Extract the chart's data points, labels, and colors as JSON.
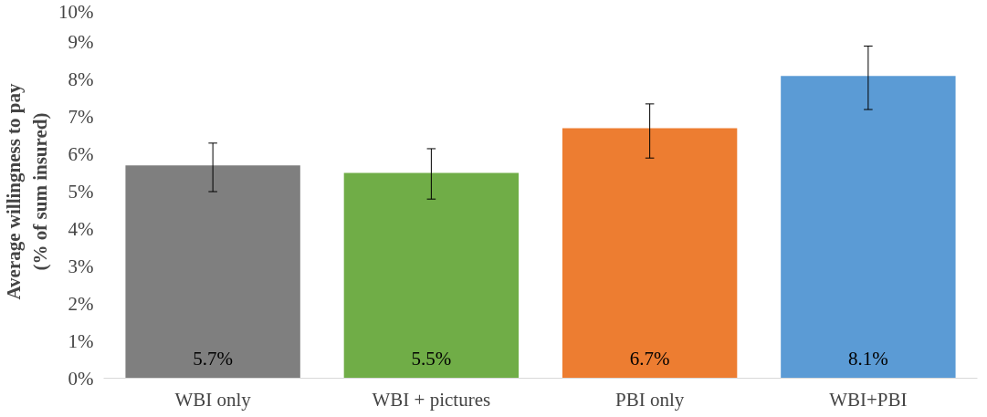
{
  "chart_data": {
    "type": "bar",
    "ylabel": "Average willingness to pay\n(% of sum insured)",
    "categories": [
      "WBI only",
      "WBI + pictures",
      "PBI only",
      "WBI+PBI"
    ],
    "values": [
      5.7,
      5.5,
      6.7,
      8.1
    ],
    "colors": [
      "#7f7f7f",
      "#70ad47",
      "#ed7d31",
      "#5b9bd5"
    ],
    "errors": [
      [
        5.0,
        6.3
      ],
      [
        4.8,
        6.15
      ],
      [
        5.9,
        7.35
      ],
      [
        7.2,
        8.9
      ]
    ],
    "value_labels": [
      "5.7%",
      "5.5%",
      "6.7%",
      "8.1%"
    ],
    "ylim": [
      0,
      10
    ],
    "yticks": [
      {
        "value": 0,
        "label": "0%"
      },
      {
        "value": 1,
        "label": "1%"
      },
      {
        "value": 2,
        "label": "2%"
      },
      {
        "value": 3,
        "label": "3%"
      },
      {
        "value": 4,
        "label": "4%"
      },
      {
        "value": 5,
        "label": "5%"
      },
      {
        "value": 6,
        "label": "6%"
      },
      {
        "value": 7,
        "label": "7%"
      },
      {
        "value": 8,
        "label": "8%"
      },
      {
        "value": 9,
        "label": "9%"
      },
      {
        "value": 10,
        "label": "10%"
      }
    ],
    "grid": false
  }
}
